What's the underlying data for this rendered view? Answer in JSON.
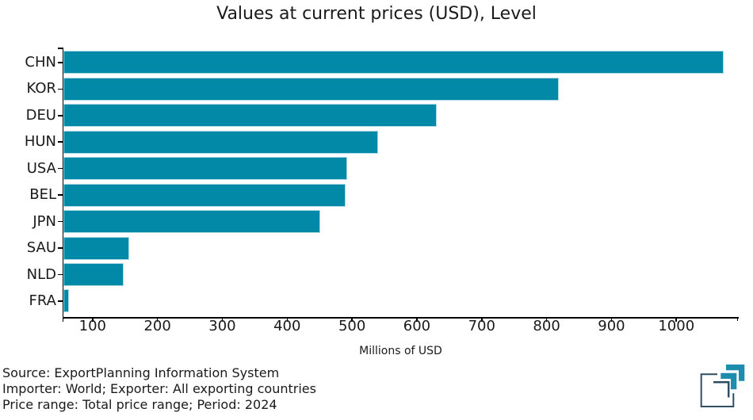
{
  "footer": {
    "line1": "Source: ExportPlanning Information System",
    "line2": "Importer: World; Exporter: All exporting countries",
    "line3": "Price range: Total price range; Period: 2024"
  },
  "logo": {
    "name": "ExportPlanning",
    "teal": "#1e8cac",
    "dark": "#2d4f63"
  },
  "colors": {
    "bar_fill": "#0289a8",
    "bar_edge": "#abd9e6",
    "axis": "#000000",
    "text": "#1a1a1a"
  },
  "chart_data": {
    "type": "bar",
    "orientation": "horizontal",
    "title": "Values at current prices (USD), Level",
    "xlabel": "Millions of USD",
    "ylabel": "",
    "categories": [
      "CHN",
      "KOR",
      "DEU",
      "HUN",
      "USA",
      "BEL",
      "JPN",
      "SAU",
      "NLD",
      "FRA"
    ],
    "values": [
      1073,
      819,
      631,
      540,
      493,
      490,
      451,
      156,
      148,
      63
    ],
    "units": "Millions of USD",
    "xlim": [
      55,
      1095
    ],
    "xticks": [
      100,
      200,
      300,
      400,
      500,
      600,
      700,
      800,
      900,
      1000
    ],
    "grid": false,
    "legend": false
  }
}
